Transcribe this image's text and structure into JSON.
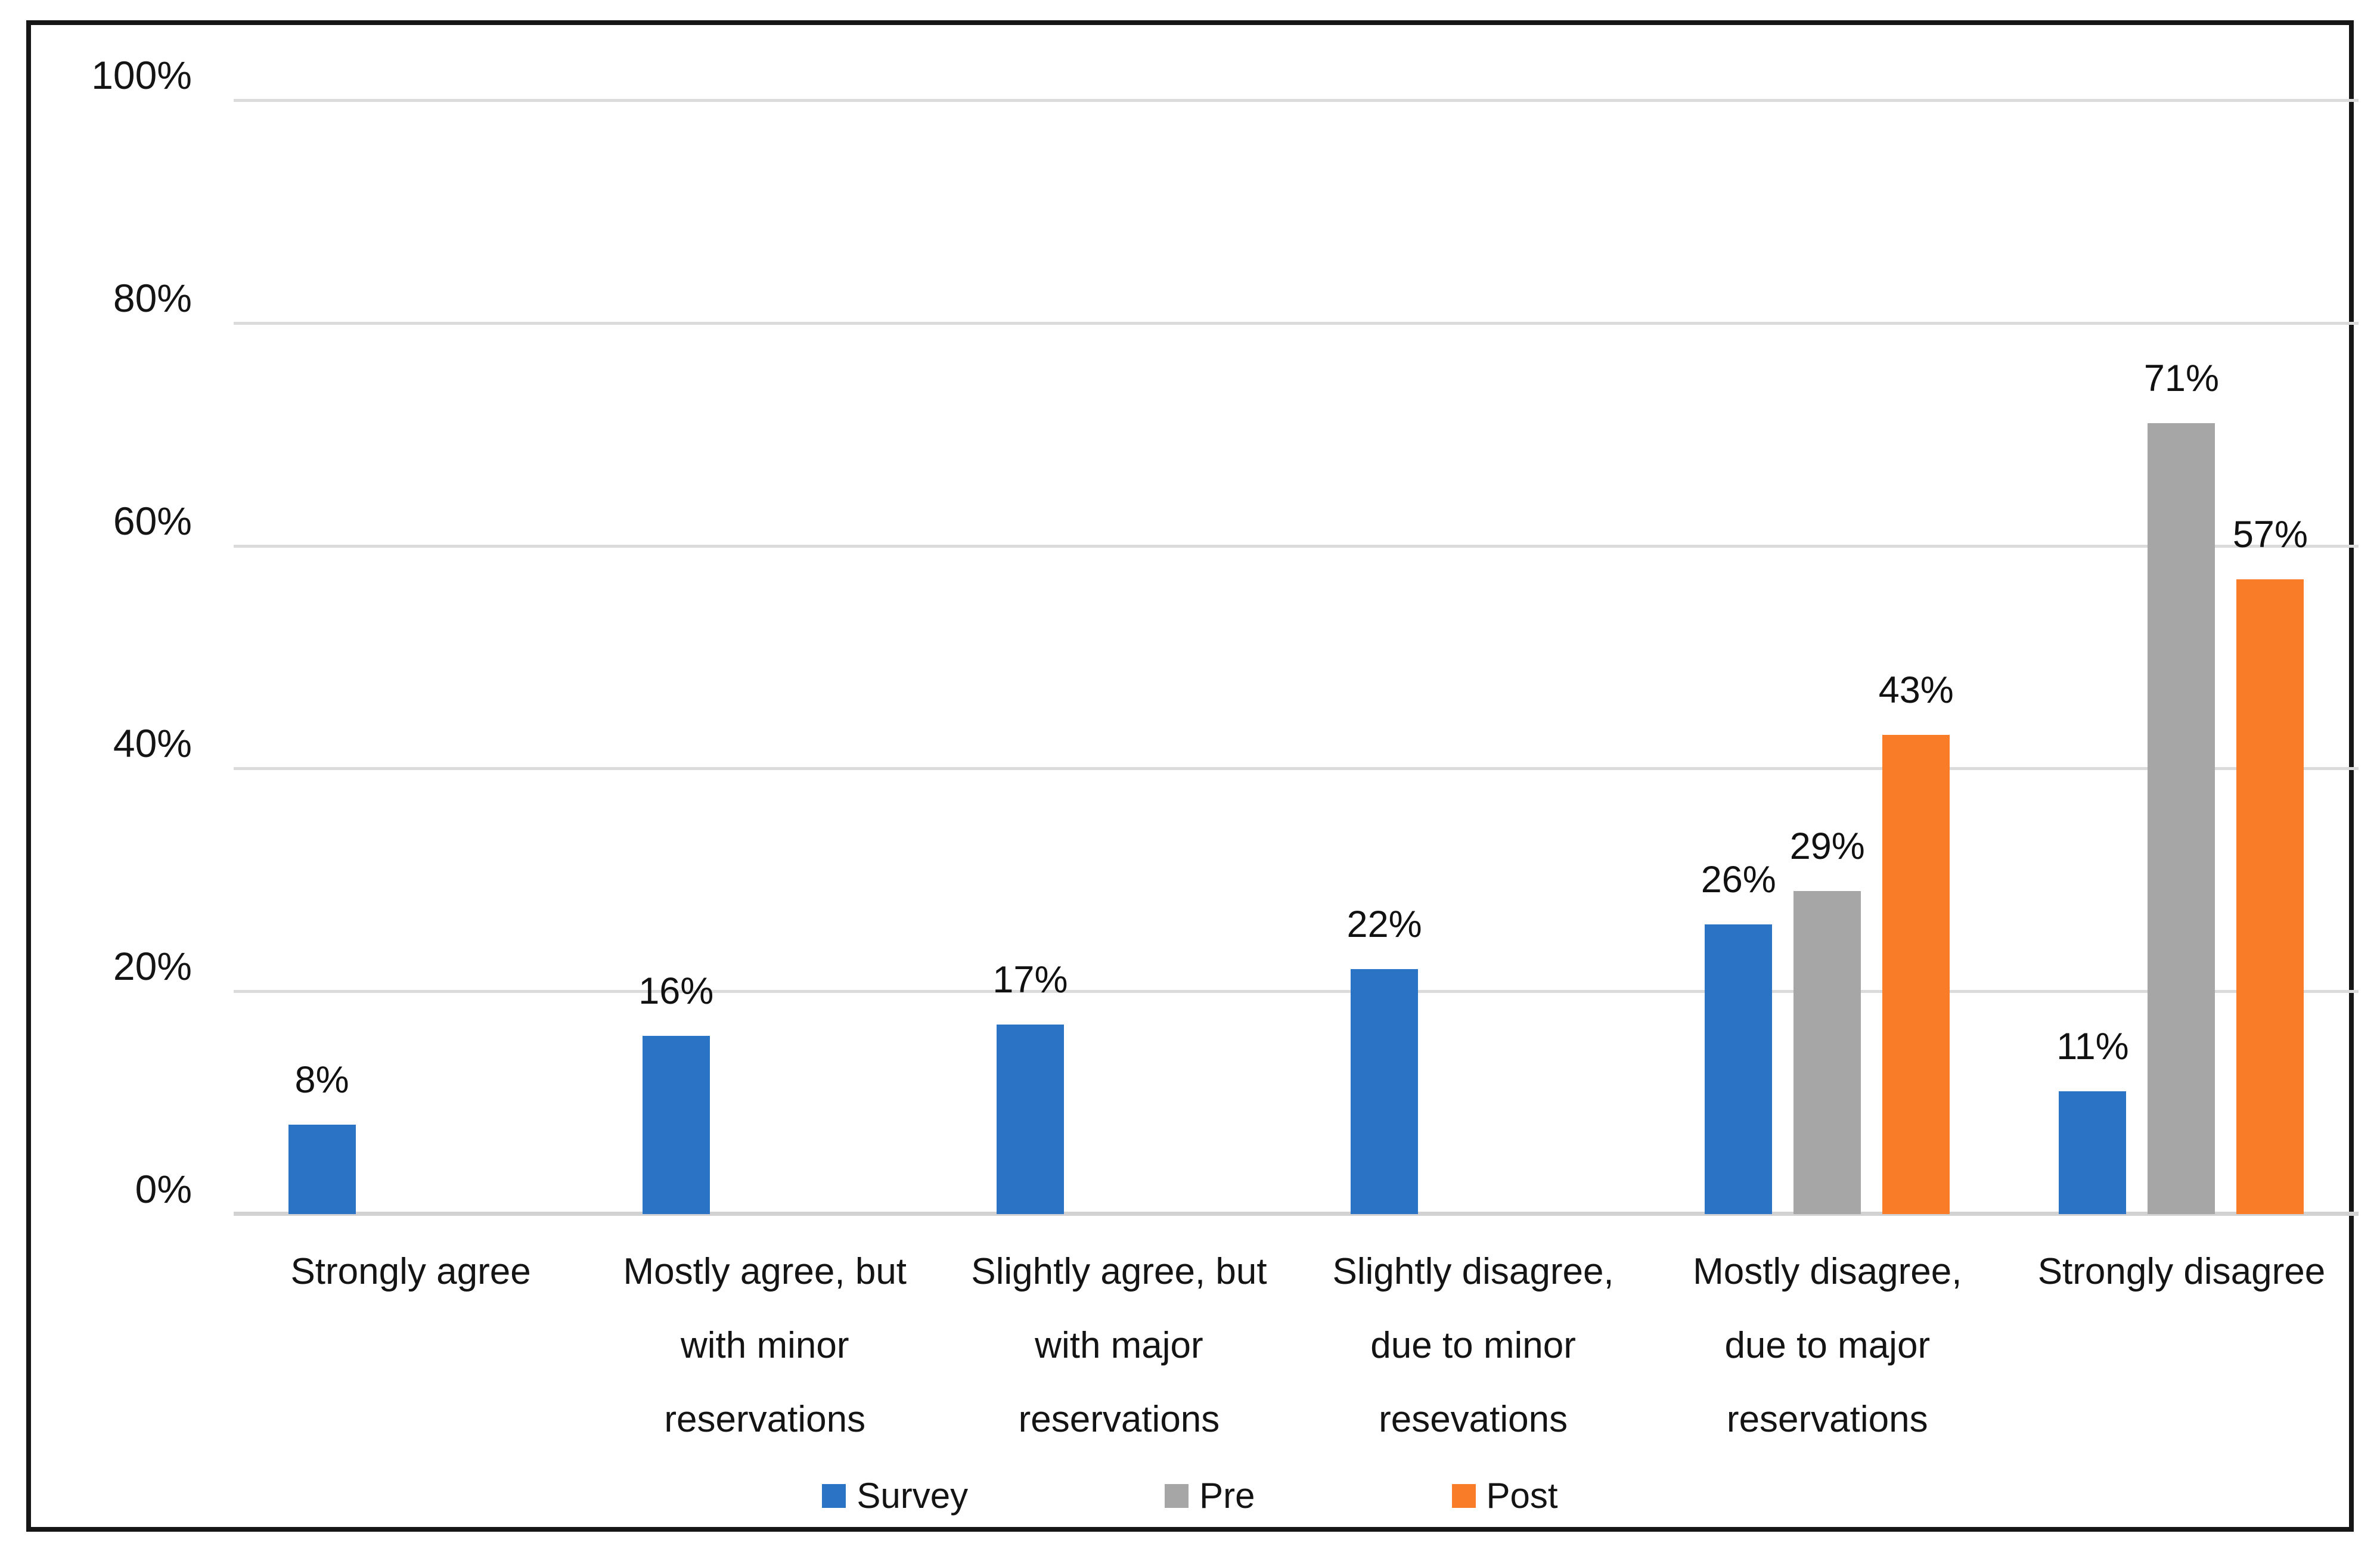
{
  "chart_data": {
    "type": "bar",
    "title": "",
    "xlabel": "",
    "ylabel": "",
    "categories": [
      [
        "Strongly agree"
      ],
      [
        "Mostly agree, but",
        "with minor",
        "reservations"
      ],
      [
        "Slightly agree, but",
        "with major",
        "reservations"
      ],
      [
        "Slightly disagree,",
        "due to minor",
        "resevations"
      ],
      [
        "Mostly disagree,",
        "due to major",
        "reservations"
      ],
      [
        "Strongly disagree"
      ]
    ],
    "series": [
      {
        "name": "Survey",
        "color": "#2B73C4",
        "values": [
          8,
          16,
          17,
          22,
          26,
          11
        ]
      },
      {
        "name": "Pre",
        "color": "#A6A6A6",
        "values": [
          null,
          null,
          null,
          null,
          29,
          71
        ]
      },
      {
        "name": "Post",
        "color": "#F97D28",
        "values": [
          null,
          null,
          null,
          null,
          43,
          57
        ]
      }
    ],
    "data_labels": {
      "show": true,
      "suffix": "%",
      "color": "#111111"
    },
    "y_axis": {
      "min": 0,
      "max": 100,
      "tick_step": 20,
      "tick_labels": [
        "0%",
        "20%",
        "40%",
        "60%",
        "80%",
        "100%"
      ]
    },
    "grid": {
      "show": true,
      "color": "#DBDBDB"
    },
    "legend": {
      "position": "bottom",
      "items": [
        {
          "label": "Survey",
          "color": "#2B73C4"
        },
        {
          "label": "Pre",
          "color": "#A6A6A6"
        },
        {
          "label": "Post",
          "color": "#F97D28"
        }
      ]
    }
  }
}
